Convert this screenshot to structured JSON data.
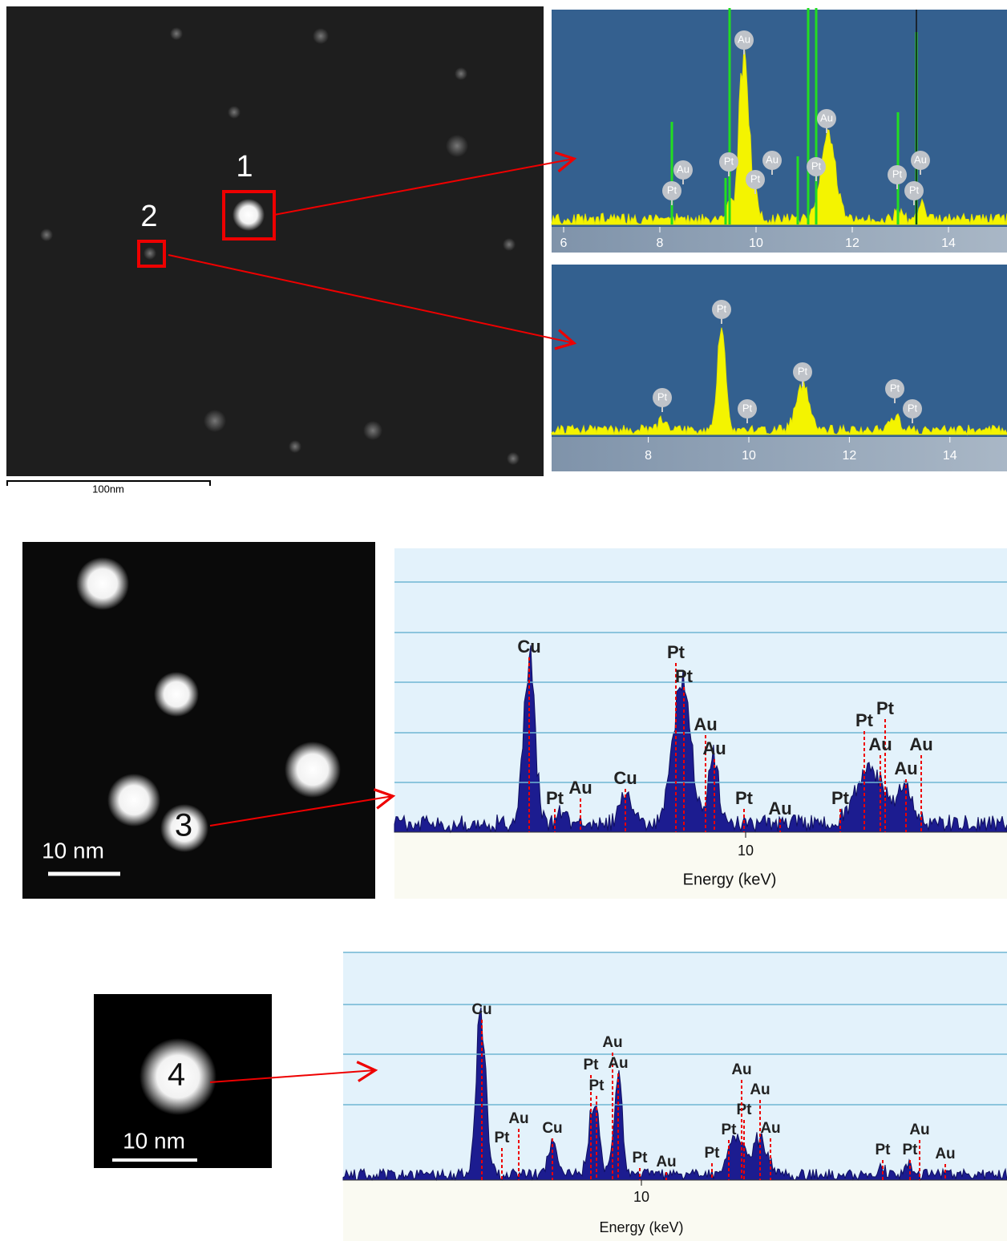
{
  "top": {
    "scale_bar": "100nm",
    "markers": [
      "1",
      "2"
    ],
    "spectrum_1": {
      "xticks": [
        6,
        8,
        10,
        12,
        14
      ],
      "peaks": [
        "Au",
        "Au",
        "Au",
        "Pt",
        "Pt",
        "Au",
        "Pt",
        "Pt",
        "Pt",
        "Au",
        "Pt"
      ]
    },
    "spectrum_2": {
      "xticks": [
        8,
        10,
        12,
        14
      ],
      "peaks": [
        "Pt",
        "Pt",
        "Pt",
        "Pt",
        "Pt",
        "Pt"
      ]
    }
  },
  "middle": {
    "marker": "3",
    "scale_bar": "10 nm",
    "spectrum": {
      "xticks": [
        10
      ],
      "x_label": "Energy (keV)",
      "peaks": [
        "Cu",
        "Pt",
        "Pt",
        "Au",
        "Au",
        "Cu",
        "Pt",
        "Au",
        "Pt",
        "Au",
        "Pt",
        "Pt",
        "Pt",
        "Au",
        "Au",
        "Au"
      ]
    }
  },
  "bottom": {
    "marker": "4",
    "scale_bar": "10 nm",
    "spectrum": {
      "xticks": [
        10
      ],
      "x_label": "Energy (keV)",
      "peaks": [
        "Cu",
        "Pt",
        "Au",
        "Cu",
        "Pt",
        "Pt",
        "Au",
        "Au",
        "Pt",
        "Au",
        "Pt",
        "Pt",
        "Pt",
        "Au",
        "Au",
        "Au",
        "Pt",
        "Pt",
        "Au",
        "Au"
      ]
    }
  }
}
